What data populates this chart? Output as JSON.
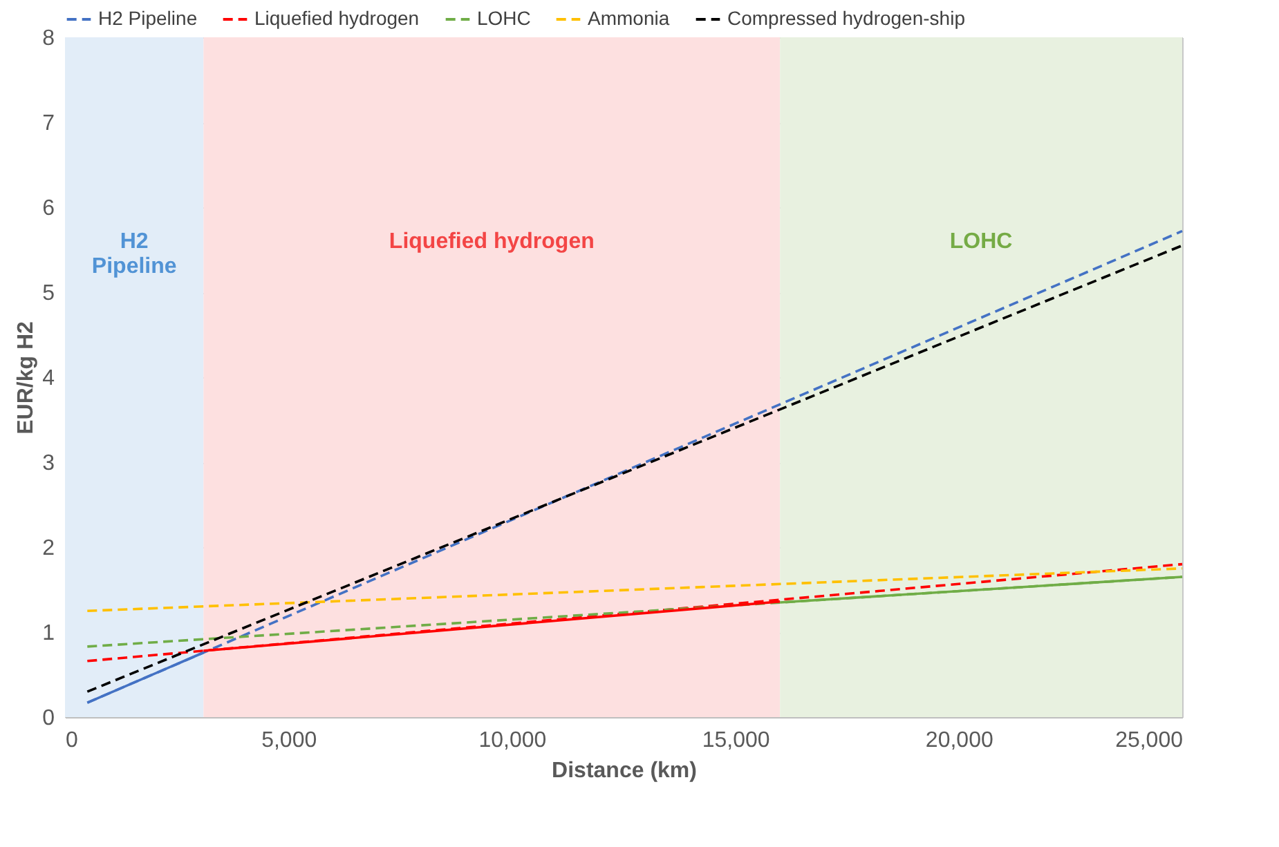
{
  "chart_data": {
    "type": "line",
    "xlabel": "Distance (km)",
    "ylabel": "EUR/kg H2",
    "xlim": [
      0,
      25000
    ],
    "ylim": [
      0,
      8
    ],
    "xticks": [
      0,
      {
        "value": 5000,
        "label": "5,000"
      },
      {
        "value": 10000,
        "label": "10,000"
      },
      {
        "value": 15000,
        "label": "15,000"
      },
      {
        "value": 20000,
        "label": "20,000"
      },
      {
        "value": 25000,
        "label": "25,000"
      }
    ],
    "yticks": [
      0,
      1,
      2,
      3,
      4,
      5,
      6,
      7,
      8
    ],
    "grid": true,
    "legend": "top",
    "marker": "none",
    "series": [
      {
        "name": "H2 Pipeline",
        "color": "#4472c4",
        "line_style": "dashed",
        "x": [
          500,
          25000
        ],
        "values": [
          0.17,
          5.72
        ]
      },
      {
        "name": "Liquefied hydrogen",
        "color": "#ff0000",
        "line_style": "dashed",
        "x": [
          500,
          25000
        ],
        "values": [
          0.66,
          1.8
        ]
      },
      {
        "name": "LOHC",
        "color": "#70ad47",
        "line_style": "dashed",
        "x": [
          500,
          25000
        ],
        "values": [
          0.83,
          1.65
        ]
      },
      {
        "name": "Ammonia",
        "color": "#ffc000",
        "line_style": "dashed",
        "x": [
          500,
          25000
        ],
        "values": [
          1.25,
          1.75
        ]
      },
      {
        "name": "Compressed hydrogen-ship",
        "color": "#000000",
        "line_style": "dashed",
        "x": [
          500,
          25000
        ],
        "values": [
          0.3,
          5.55
        ]
      },
      {
        "color": "#4472c4",
        "line_style": "solid",
        "x": [
          500,
          3100
        ],
        "values": [
          0.17,
          0.76
        ]
      },
      {
        "color": "#ff0000",
        "line_style": "solid",
        "x": [
          3100,
          16000
        ],
        "values": [
          0.78,
          1.36
        ]
      },
      {
        "color": "#70ad47",
        "line_style": "solid",
        "x": [
          16000,
          25000
        ],
        "values": [
          1.35,
          1.65
        ]
      }
    ],
    "bands": [
      {
        "axis": "x",
        "from": 0,
        "to": 3100,
        "label": "H2\nPipeline",
        "color": "#e2edf8"
      },
      {
        "axis": "x",
        "from": 3100,
        "to": 16000,
        "label": "Liquefied hydrogen",
        "color": "#fde0e0"
      },
      {
        "axis": "x",
        "from": 16000,
        "to": 25000,
        "label": "LOHC",
        "color": "#e8f1e0"
      }
    ]
  }
}
